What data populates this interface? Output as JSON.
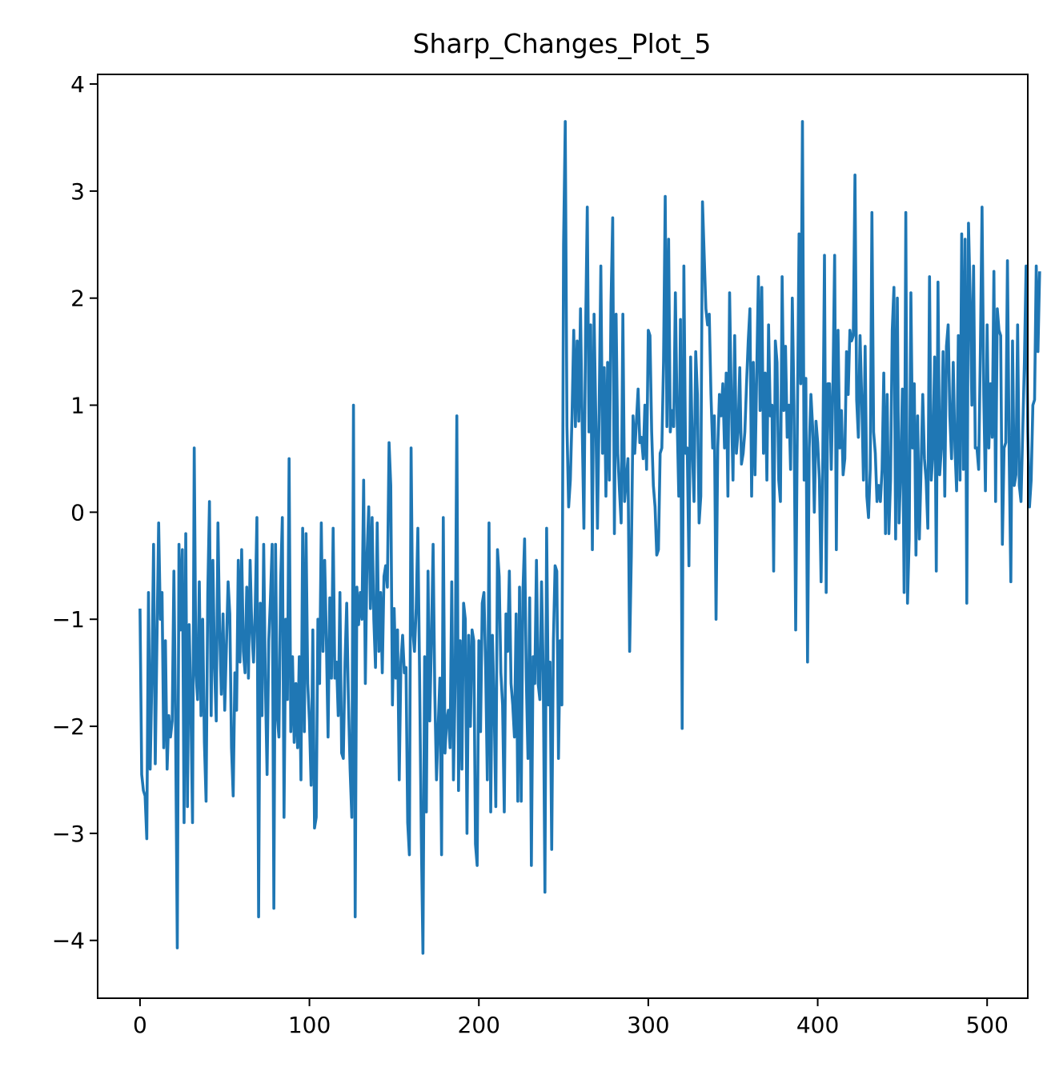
{
  "chart_data": {
    "type": "line",
    "title": "Sharp_Changes_Plot_5",
    "xlabel": "",
    "ylabel": "",
    "xlim": [
      -25,
      524
    ],
    "ylim": [
      -4.54,
      4.09
    ],
    "x_ticks": [
      0,
      100,
      200,
      300,
      400,
      500
    ],
    "x_tick_labels": [
      "0",
      "100",
      "200",
      "300",
      "400",
      "500"
    ],
    "y_ticks": [
      -4,
      -3,
      -2,
      -1,
      0,
      1,
      2,
      3,
      4
    ],
    "y_tick_labels": [
      "−4",
      "−3",
      "−2",
      "−1",
      "0",
      "1",
      "2",
      "3",
      "4"
    ],
    "grid": false,
    "legend": "none",
    "series": [
      {
        "color": "#1f77b4",
        "x_start": 0,
        "x_step": 1,
        "values": [
          -0.9,
          -2.45,
          -2.6,
          -2.65,
          -3.05,
          -0.75,
          -2.4,
          -1.55,
          -0.3,
          -2.35,
          -1.2,
          -0.1,
          -1.0,
          -0.75,
          -2.2,
          -1.2,
          -2.4,
          -1.9,
          -2.1,
          -1.95,
          -0.55,
          -2.0,
          -4.07,
          -0.3,
          -1.1,
          -0.35,
          -2.9,
          -0.2,
          -2.75,
          -1.05,
          -1.8,
          -2.9,
          0.6,
          -1.5,
          -1.75,
          -0.65,
          -1.9,
          -1.0,
          -2.15,
          -2.7,
          -0.75,
          0.1,
          -1.9,
          -0.45,
          -1.45,
          -1.95,
          -0.1,
          -1.1,
          -1.7,
          -0.95,
          -1.85,
          -1.25,
          -0.65,
          -0.95,
          -2.2,
          -2.65,
          -1.5,
          -1.85,
          -0.45,
          -1.4,
          -0.35,
          -1.3,
          -1.5,
          -0.7,
          -1.55,
          -0.45,
          -1.1,
          -1.4,
          -0.9,
          -0.05,
          -3.78,
          -0.85,
          -1.9,
          -0.3,
          -1.6,
          -2.45,
          -1.2,
          -0.8,
          -0.3,
          -3.7,
          -0.3,
          -1.9,
          -2.1,
          -0.65,
          -0.05,
          -2.85,
          -1.0,
          -1.75,
          0.5,
          -2.05,
          -1.35,
          -2.15,
          -1.6,
          -2.2,
          -1.35,
          -2.5,
          -0.15,
          -2.05,
          -0.2,
          -1.6,
          -1.95,
          -2.55,
          -1.1,
          -2.95,
          -2.85,
          -1.0,
          -1.6,
          -0.1,
          -1.3,
          -0.45,
          -1.2,
          -2.1,
          -0.8,
          -1.55,
          -0.15,
          -1.55,
          -1.4,
          -1.9,
          -0.75,
          -2.25,
          -2.3,
          -1.4,
          -0.85,
          -1.75,
          -2.4,
          -2.85,
          1.0,
          -3.78,
          -0.7,
          -1.05,
          -0.75,
          -1.0,
          0.3,
          -1.6,
          -0.4,
          0.05,
          -0.9,
          -0.05,
          -1.0,
          -1.45,
          -0.1,
          -1.3,
          -0.75,
          -1.5,
          -0.6,
          -0.5,
          -0.7,
          0.65,
          0.25,
          -1.8,
          -0.9,
          -1.55,
          -1.1,
          -2.5,
          -1.4,
          -1.15,
          -1.5,
          -1.45,
          -2.9,
          -3.2,
          0.6,
          -1.1,
          -1.3,
          -0.9,
          -0.15,
          -1.5,
          -3.0,
          -4.12,
          -1.35,
          -2.8,
          -0.55,
          -1.95,
          -1.2,
          -0.3,
          -1.7,
          -2.5,
          -2.0,
          -1.55,
          -3.2,
          -0.05,
          -2.25,
          -1.95,
          -1.85,
          -2.2,
          -0.65,
          -2.5,
          -1.6,
          0.9,
          -2.6,
          -1.2,
          -2.4,
          -0.85,
          -1.0,
          -3.0,
          -1.15,
          -2.0,
          -1.1,
          -1.2,
          -3.1,
          -3.3,
          -1.2,
          -2.05,
          -0.85,
          -0.75,
          -1.45,
          -2.5,
          -0.1,
          -2.8,
          -1.15,
          -1.8,
          -2.75,
          -0.35,
          -0.6,
          -1.5,
          -1.8,
          -2.8,
          -0.95,
          -1.3,
          -0.55,
          -1.6,
          -1.8,
          -2.1,
          -0.95,
          -2.7,
          -0.7,
          -2.7,
          -0.75,
          -0.25,
          -1.55,
          -2.3,
          -0.8,
          -3.3,
          -1.35,
          -1.6,
          -0.45,
          -1.6,
          -1.75,
          -0.65,
          -1.5,
          -3.55,
          -0.15,
          -1.8,
          -1.4,
          -3.15,
          -1.2,
          -0.5,
          -0.55,
          -2.3,
          -1.2,
          -1.8,
          2.5,
          3.65,
          0.8,
          0.05,
          0.3,
          0.9,
          1.7,
          0.8,
          1.6,
          0.85,
          1.9,
          0.8,
          -0.15,
          1.7,
          2.85,
          0.75,
          1.75,
          -0.35,
          1.85,
          0.9,
          -0.15,
          0.95,
          2.3,
          0.55,
          1.35,
          0.15,
          1.4,
          0.3,
          1.95,
          2.75,
          -0.2,
          1.85,
          0.55,
          0.2,
          -0.1,
          1.85,
          0.1,
          0.3,
          0.5,
          -1.3,
          -0.4,
          0.9,
          0.55,
          0.85,
          1.15,
          0.65,
          0.7,
          0.5,
          1.0,
          0.4,
          1.7,
          1.65,
          0.75,
          0.25,
          0.05,
          -0.4,
          -0.35,
          0.55,
          0.6,
          1.4,
          2.95,
          0.8,
          2.55,
          0.75,
          0.95,
          0.8,
          2.05,
          0.9,
          0.15,
          1.8,
          -2.02,
          2.3,
          0.55,
          0.6,
          -0.5,
          1.45,
          0.6,
          0.1,
          1.5,
          1.1,
          -0.1,
          0.15,
          2.9,
          2.4,
          1.9,
          1.75,
          1.85,
          1.1,
          0.6,
          0.9,
          -1.0,
          0.6,
          1.1,
          0.9,
          1.2,
          0.6,
          1.3,
          0.15,
          2.05,
          1.05,
          0.3,
          1.65,
          0.55,
          0.75,
          1.35,
          0.45,
          0.55,
          0.75,
          1.2,
          1.6,
          1.9,
          0.15,
          1.4,
          0.35,
          1.3,
          2.2,
          0.95,
          2.1,
          0.55,
          1.3,
          0.3,
          1.75,
          0.9,
          1.0,
          -0.55,
          1.6,
          1.4,
          0.3,
          0.1,
          2.2,
          0.95,
          1.55,
          0.7,
          1.0,
          0.4,
          2.0,
          1.0,
          -1.1,
          0.85,
          2.6,
          1.2,
          3.65,
          0.3,
          1.25,
          -1.4,
          0.6,
          1.1,
          0.8,
          0.0,
          0.85,
          0.65,
          0.3,
          -0.65,
          0.5,
          2.4,
          -0.75,
          1.2,
          1.2,
          0.4,
          1.2,
          2.4,
          -0.35,
          1.7,
          0.6,
          0.95,
          0.35,
          0.5,
          1.5,
          1.1,
          1.7,
          1.6,
          1.65,
          3.15,
          1.05,
          0.7,
          1.65,
          1.05,
          0.3,
          1.55,
          0.15,
          -0.05,
          0.4,
          2.8,
          0.75,
          0.55,
          0.1,
          0.25,
          0.1,
          0.4,
          1.3,
          -0.2,
          1.1,
          -0.2,
          0.3,
          1.7,
          2.1,
          -0.25,
          2.0,
          -0.1,
          0.4,
          1.15,
          -0.75,
          2.8,
          -0.85,
          -0.25,
          2.05,
          0.6,
          1.2,
          -0.4,
          0.9,
          -0.25,
          0.4,
          1.1,
          0.5,
          0.3,
          -0.15,
          2.2,
          0.3,
          0.55,
          1.45,
          -0.55,
          2.15,
          0.35,
          0.6,
          1.5,
          0.15,
          1.55,
          1.75,
          0.9,
          0.5,
          1.4,
          0.6,
          0.2,
          1.65,
          0.3,
          2.6,
          0.4,
          2.55,
          -0.85,
          2.7,
          2.0,
          1.0,
          2.3,
          0.6,
          0.6,
          0.4,
          1.5,
          2.85,
          1.1,
          0.2,
          1.75,
          0.6,
          1.2,
          0.7,
          2.25,
          0.1,
          1.9,
          1.7,
          1.65,
          -0.3,
          0.6,
          0.65,
          2.35,
          0.55,
          -0.65,
          1.6,
          0.25,
          0.35,
          1.75,
          0.25,
          0.1,
          0.75,
          1.4,
          2.3,
          0.75,
          0.05,
          0.3,
          1.0,
          1.05,
          2.3,
          1.5,
          2.25
        ]
      }
    ]
  }
}
